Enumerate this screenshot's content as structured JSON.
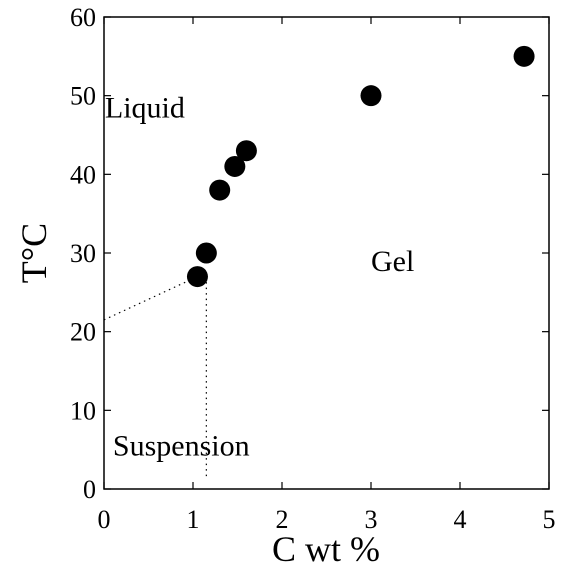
{
  "chart_data": {
    "type": "scatter",
    "title": "",
    "xlabel": "C wt %",
    "ylabel": "T°C",
    "xlim": [
      0,
      5
    ],
    "ylim": [
      0,
      60
    ],
    "xticks": [
      "0",
      "1",
      "2",
      "3",
      "4",
      "5"
    ],
    "yticks": [
      "0",
      "10",
      "20",
      "30",
      "40",
      "50",
      "60"
    ],
    "grid": false,
    "series": [
      {
        "points": [
          {
            "x": 1.05,
            "y": 27
          },
          {
            "x": 1.15,
            "y": 30
          },
          {
            "x": 1.3,
            "y": 38
          },
          {
            "x": 1.47,
            "y": 41
          },
          {
            "x": 1.6,
            "y": 43
          },
          {
            "x": 3.0,
            "y": 50
          },
          {
            "x": 4.72,
            "y": 55
          }
        ],
        "color": "#000000",
        "marker": "filled-circle"
      }
    ],
    "dotted_lines": [
      {
        "points": [
          {
            "x": 0,
            "y": 21.5
          },
          {
            "x": 1.05,
            "y": 27
          }
        ]
      },
      {
        "points": [
          {
            "x": 1.15,
            "y": 27
          },
          {
            "x": 1.15,
            "y": 1.5
          }
        ]
      }
    ],
    "annotations": [
      {
        "text": "Liquid",
        "x": 0.01,
        "y": 48.5
      },
      {
        "text": "Gel",
        "x": 3.0,
        "y": 29
      },
      {
        "text": "Suspension",
        "x": 0.1,
        "y": 5.5
      }
    ]
  }
}
